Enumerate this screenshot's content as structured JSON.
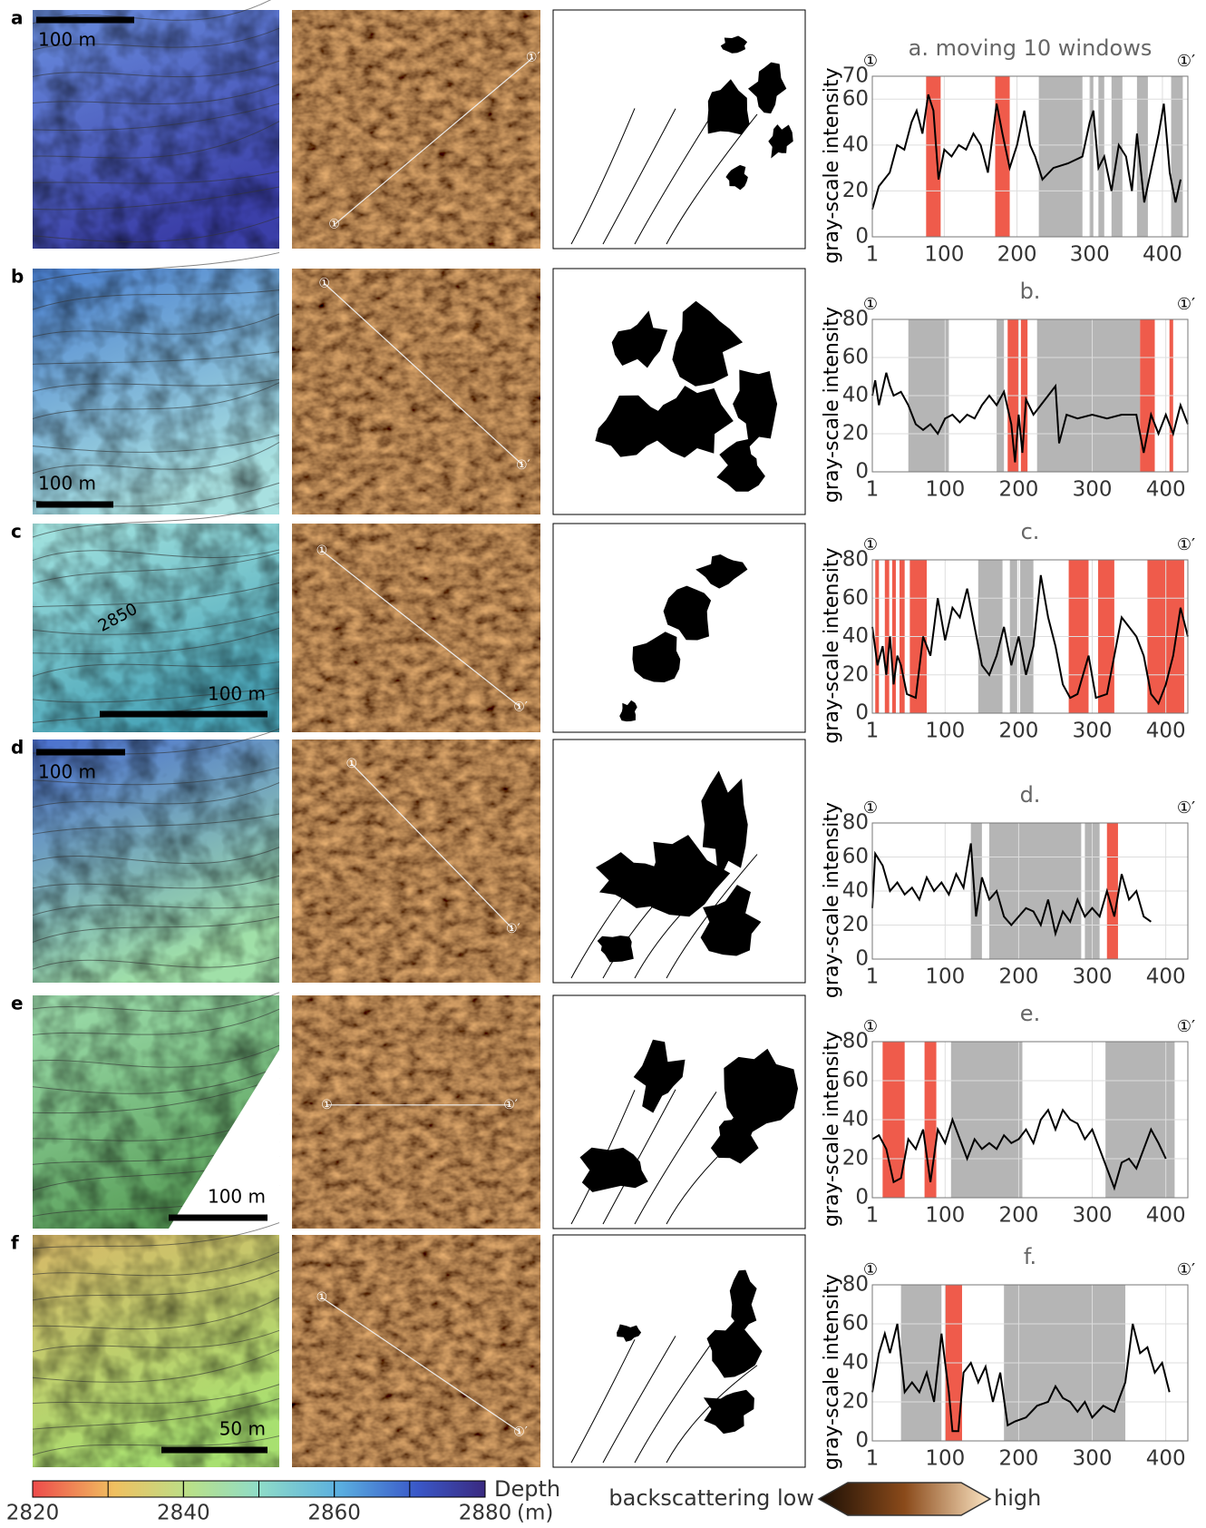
{
  "panels": [
    {
      "letter": "a",
      "scale_bar": "100 m",
      "markers": [
        "①",
        "①′"
      ]
    },
    {
      "letter": "b",
      "scale_bar": "100 m",
      "markers": [
        "①",
        "①′"
      ]
    },
    {
      "letter": "c",
      "scale_bar": "100 m",
      "contour_label": "2850",
      "markers": [
        "①",
        "①′"
      ]
    },
    {
      "letter": "d",
      "scale_bar": "100 m",
      "markers": [
        "①",
        "①′"
      ]
    },
    {
      "letter": "e",
      "scale_bar": "100 m",
      "markers": [
        "①",
        "①′"
      ]
    },
    {
      "letter": "f",
      "scale_bar": "50 m",
      "markers": [
        "①",
        "①′"
      ]
    }
  ],
  "colorbar": {
    "label": "Depth",
    "unit": "(m)",
    "ticks": [
      2820,
      2840,
      2860,
      2880
    ]
  },
  "backscatter_legend": {
    "low": "backscattering low",
    "high": "high"
  },
  "chart_data": [
    {
      "type": "line",
      "title": "a. moving 10 windows",
      "y_label": "gray-scale intensity",
      "color": "#000000",
      "x": [
        1,
        10,
        25,
        35,
        45,
        55,
        62,
        70,
        78,
        85,
        92,
        100,
        110,
        120,
        130,
        140,
        150,
        160,
        172,
        180,
        190,
        200,
        210,
        218,
        225,
        235,
        250,
        270,
        290,
        300,
        305,
        312,
        320,
        330,
        340,
        350,
        358,
        365,
        375,
        385,
        395,
        402,
        410,
        418,
        425
      ],
      "values": [
        12,
        22,
        28,
        40,
        38,
        50,
        55,
        45,
        62,
        55,
        25,
        38,
        35,
        40,
        38,
        45,
        40,
        28,
        58,
        45,
        30,
        40,
        55,
        40,
        35,
        25,
        30,
        32,
        35,
        50,
        55,
        30,
        35,
        20,
        40,
        35,
        20,
        45,
        15,
        30,
        45,
        58,
        28,
        15,
        25
      ],
      "shaded": [
        {
          "color": "#b5b5b5",
          "ranges": [
            [
              230,
              290
            ],
            [
              300,
              305
            ],
            [
              312,
              320
            ],
            [
              330,
              345
            ],
            [
              365,
              380
            ],
            [
              412,
              428
            ]
          ]
        },
        {
          "color": "#ef5b4b",
          "ranges": [
            [
              75,
              95
            ],
            [
              170,
              190
            ]
          ]
        }
      ],
      "xlim": [
        1,
        435
      ],
      "ylim": [
        0,
        70
      ],
      "xticks": [
        1,
        100,
        200,
        300,
        400
      ],
      "yticks": [
        0,
        20,
        40,
        60,
        70
      ],
      "grid": true
    },
    {
      "type": "line",
      "title": "b.",
      "y_label": "gray-scale intensity",
      "color": "#000000",
      "x": [
        1,
        5,
        10,
        20,
        25,
        30,
        40,
        50,
        60,
        70,
        80,
        90,
        100,
        110,
        120,
        130,
        140,
        150,
        160,
        170,
        180,
        190,
        195,
        200,
        205,
        210,
        220,
        230,
        240,
        250,
        255,
        265,
        280,
        300,
        320,
        340,
        360,
        370,
        380,
        390,
        400,
        410,
        420,
        430
      ],
      "values": [
        40,
        48,
        35,
        52,
        45,
        40,
        42,
        35,
        25,
        22,
        25,
        20,
        28,
        30,
        26,
        30,
        28,
        35,
        40,
        35,
        42,
        25,
        5,
        30,
        10,
        38,
        30,
        35,
        40,
        45,
        15,
        30,
        28,
        30,
        28,
        30,
        30,
        10,
        30,
        20,
        30,
        20,
        35,
        25
      ],
      "shaded": [
        {
          "color": "#b5b5b5",
          "ranges": [
            [
              50,
              105
            ],
            [
              170,
              180
            ],
            [
              225,
              365
            ]
          ]
        },
        {
          "color": "#ef5b4b",
          "ranges": [
            [
              185,
              200
            ],
            [
              203,
              212
            ],
            [
              365,
              385
            ],
            [
              405,
              410
            ]
          ]
        }
      ],
      "xlim": [
        1,
        430
      ],
      "ylim": [
        0,
        80
      ],
      "xticks": [
        1,
        100,
        200,
        300,
        400
      ],
      "yticks": [
        0,
        20,
        40,
        60,
        80
      ],
      "grid": true
    },
    {
      "type": "line",
      "title": "c.",
      "y_label": "gray-scale intensity",
      "color": "#000000",
      "x": [
        1,
        8,
        15,
        20,
        25,
        30,
        35,
        40,
        48,
        60,
        70,
        80,
        90,
        100,
        110,
        120,
        130,
        140,
        150,
        160,
        170,
        180,
        190,
        200,
        210,
        220,
        230,
        240,
        250,
        260,
        270,
        280,
        295,
        305,
        320,
        330,
        340,
        350,
        360,
        370,
        380,
        390,
        400,
        410,
        420,
        430
      ],
      "values": [
        45,
        25,
        35,
        20,
        40,
        15,
        30,
        25,
        10,
        8,
        40,
        30,
        60,
        38,
        55,
        50,
        65,
        45,
        25,
        20,
        30,
        45,
        25,
        40,
        20,
        35,
        72,
        50,
        35,
        15,
        8,
        10,
        30,
        8,
        10,
        30,
        50,
        45,
        40,
        30,
        10,
        5,
        15,
        30,
        55,
        40
      ],
      "shaded": [
        {
          "color": "#b5b5b5",
          "ranges": [
            [
              145,
              178
            ],
            [
              188,
              198
            ],
            [
              202,
              220
            ]
          ]
        },
        {
          "color": "#ef5b4b",
          "ranges": [
            [
              5,
              10
            ],
            [
              18,
              24
            ],
            [
              28,
              33
            ],
            [
              38,
              45
            ],
            [
              52,
              75
            ],
            [
              268,
              295
            ],
            [
              308,
              330
            ],
            [
              375,
              425
            ]
          ]
        }
      ],
      "xlim": [
        1,
        430
      ],
      "ylim": [
        0,
        80
      ],
      "xticks": [
        1,
        100,
        200,
        300,
        400
      ],
      "yticks": [
        0,
        20,
        40,
        60,
        80
      ],
      "grid": true
    },
    {
      "type": "line",
      "title": "d.",
      "y_label": "gray-scale intensity",
      "color": "#000000",
      "x": [
        1,
        5,
        15,
        25,
        35,
        45,
        55,
        65,
        75,
        85,
        95,
        105,
        115,
        125,
        135,
        142,
        150,
        160,
        170,
        180,
        190,
        200,
        210,
        220,
        230,
        240,
        250,
        260,
        270,
        280,
        290,
        300,
        310,
        320,
        330,
        340,
        350,
        360,
        370,
        380
      ],
      "values": [
        30,
        62,
        55,
        40,
        45,
        38,
        42,
        35,
        48,
        40,
        45,
        38,
        50,
        42,
        68,
        25,
        48,
        35,
        40,
        25,
        20,
        25,
        30,
        28,
        20,
        35,
        15,
        28,
        22,
        35,
        25,
        30,
        25,
        40,
        25,
        50,
        35,
        40,
        25,
        22
      ],
      "shaded": [
        {
          "color": "#b5b5b5",
          "ranges": [
            [
              135,
              150
            ],
            [
              160,
              285
            ],
            [
              290,
              310
            ]
          ]
        },
        {
          "color": "#ef5b4b",
          "ranges": [
            [
              320,
              335
            ]
          ]
        }
      ],
      "xlim": [
        1,
        430
      ],
      "ylim": [
        0,
        80
      ],
      "xticks": [
        1,
        100,
        200,
        300,
        400
      ],
      "yticks": [
        0,
        20,
        40,
        60,
        80
      ],
      "grid": true
    },
    {
      "type": "line",
      "title": "e.",
      "y_label": "gray-scale intensity",
      "color": "#000000",
      "x": [
        1,
        10,
        20,
        30,
        40,
        50,
        60,
        70,
        80,
        90,
        100,
        110,
        120,
        130,
        140,
        150,
        160,
        170,
        180,
        190,
        200,
        210,
        220,
        230,
        240,
        250,
        260,
        270,
        280,
        290,
        300,
        310,
        320,
        330,
        340,
        350,
        360,
        370,
        380,
        390,
        400
      ],
      "values": [
        30,
        32,
        25,
        8,
        10,
        30,
        25,
        35,
        8,
        35,
        28,
        40,
        30,
        20,
        30,
        25,
        28,
        25,
        32,
        28,
        30,
        35,
        28,
        40,
        45,
        35,
        45,
        40,
        38,
        30,
        35,
        25,
        15,
        5,
        18,
        20,
        15,
        25,
        35,
        28,
        20
      ],
      "shaded": [
        {
          "color": "#b5b5b5",
          "ranges": [
            [
              108,
              205
            ],
            [
              318,
              412
            ]
          ]
        },
        {
          "color": "#ef5b4b",
          "ranges": [
            [
              15,
              45
            ],
            [
              72,
              88
            ]
          ]
        }
      ],
      "xlim": [
        1,
        430
      ],
      "ylim": [
        0,
        80
      ],
      "xticks": [
        1,
        100,
        200,
        300,
        400
      ],
      "yticks": [
        0,
        20,
        40,
        60,
        80
      ],
      "grid": true
    },
    {
      "type": "line",
      "title": "f.",
      "y_label": "gray-scale intensity",
      "color": "#000000",
      "x": [
        1,
        10,
        18,
        25,
        35,
        45,
        55,
        65,
        75,
        85,
        95,
        105,
        110,
        118,
        125,
        135,
        145,
        155,
        165,
        175,
        185,
        195,
        210,
        225,
        240,
        250,
        260,
        270,
        280,
        290,
        300,
        315,
        330,
        345,
        355,
        365,
        375,
        385,
        395,
        405
      ],
      "values": [
        25,
        45,
        55,
        45,
        60,
        25,
        30,
        25,
        35,
        20,
        55,
        25,
        5,
        5,
        35,
        40,
        30,
        38,
        20,
        35,
        8,
        10,
        12,
        18,
        20,
        28,
        22,
        20,
        15,
        20,
        12,
        18,
        15,
        30,
        60,
        45,
        48,
        35,
        40,
        25
      ],
      "shaded": [
        {
          "color": "#b5b5b5",
          "ranges": [
            [
              40,
              95
            ],
            [
              180,
              345
            ]
          ]
        },
        {
          "color": "#ef5b4b",
          "ranges": [
            [
              100,
              123
            ]
          ]
        }
      ],
      "xlim": [
        1,
        430
      ],
      "ylim": [
        0,
        80
      ],
      "xticks": [
        1,
        100,
        200,
        300,
        400
      ],
      "yticks": [
        0,
        20,
        40,
        60,
        80
      ],
      "grid": true
    }
  ]
}
